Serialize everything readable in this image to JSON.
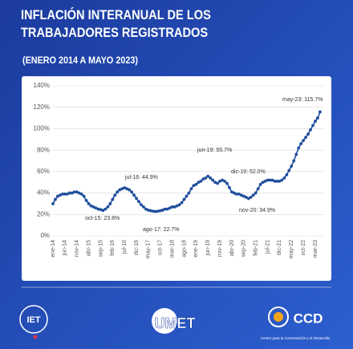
{
  "chart_data": {
    "type": "line",
    "title": "INFLACIÓN INTERANUAL DE LOS TRABAJADORES REGISTRADOS",
    "subtitle": "(ENERO 2014 A MAYO 2023)",
    "categories": [
      "ene-14",
      null,
      null,
      null,
      null,
      "jun-14",
      null,
      null,
      null,
      null,
      "nov-14",
      null,
      null,
      null,
      null,
      "abr-15",
      null,
      null,
      null,
      null,
      "sep-15",
      null,
      null,
      null,
      null,
      "feb-16",
      null,
      null,
      null,
      null,
      "jul-16",
      null,
      null,
      null,
      null,
      "dic-16",
      null,
      null,
      null,
      null,
      "may-17",
      null,
      null,
      null,
      null,
      "oct-17",
      null,
      null,
      null,
      null,
      "mar-18",
      null,
      null,
      null,
      null,
      "ago-18",
      null,
      null,
      null,
      null,
      "ene-19",
      null,
      null,
      null,
      null,
      "jun-19",
      null,
      null,
      null,
      null,
      "nov-19",
      null,
      null,
      null,
      null,
      "abr-20",
      null,
      null,
      null,
      null,
      "sep-20",
      null,
      null,
      null,
      null,
      "feb-21",
      null,
      null,
      null,
      null,
      "jul-21",
      null,
      null,
      null,
      null,
      "dic-21",
      null,
      null,
      null,
      null,
      "may-22",
      null,
      null,
      null,
      null,
      "oct-22",
      null,
      null,
      null,
      null,
      "mar-23",
      null,
      null
    ],
    "values": [
      30,
      34,
      37,
      38,
      39,
      39,
      39,
      40,
      40,
      41,
      41,
      40,
      39,
      37,
      33,
      30,
      28,
      27,
      26,
      25,
      24.5,
      23.8,
      25,
      27,
      30,
      34,
      38,
      41,
      43,
      44,
      44.9,
      44,
      43,
      41,
      38,
      35,
      32,
      29,
      27,
      25,
      24,
      23.5,
      23,
      22.7,
      23,
      23.5,
      24,
      25,
      25,
      26,
      27,
      27,
      28,
      29,
      31,
      34,
      37,
      40,
      44,
      47,
      48,
      50,
      51,
      53,
      54,
      55.7,
      54,
      52,
      50,
      49,
      51,
      52.0,
      51,
      49,
      45,
      41,
      40,
      39,
      39,
      38,
      37,
      36,
      34.9,
      36,
      38,
      40,
      44,
      48,
      50,
      51,
      52,
      52,
      52,
      51,
      51,
      51,
      52,
      54,
      57,
      61,
      65,
      70,
      76,
      82,
      86,
      89,
      92,
      95,
      99,
      103,
      107,
      110,
      115.7
    ],
    "color": "#1f4e9c",
    "ylim": [
      0,
      140
    ],
    "yticks": [
      {
        "value": 0,
        "label": "0%"
      },
      {
        "value": 20,
        "label": "20%"
      },
      {
        "value": 40,
        "label": "40%"
      },
      {
        "value": 60,
        "label": "60%"
      },
      {
        "value": 80,
        "label": "80%"
      },
      {
        "value": 100,
        "label": "100%"
      },
      {
        "value": 120,
        "label": "120%"
      },
      {
        "value": 140,
        "label": "140%"
      }
    ],
    "grid": true,
    "annotations": [
      "oct-15: 23.8%",
      "jul-16: 44.9%",
      "ago-17: 22.7%",
      "jun-19: 55.7%",
      "dic-19: 52.0%",
      "nov-20: 34.9%",
      "may-23: 115.7%"
    ]
  },
  "footer": {
    "logos": [
      "IET",
      "UMET",
      "CCD"
    ],
    "ccd_caption": "Centro para la Concertación y el Desarrollo"
  }
}
